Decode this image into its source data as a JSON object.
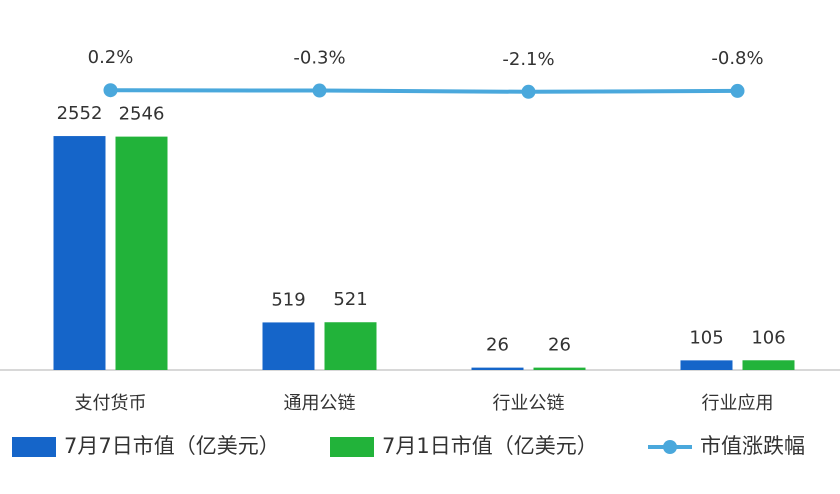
{
  "chart_data": {
    "type": "bar",
    "categories": [
      "支付货币",
      "通用公链",
      "行业公链",
      "行业应用"
    ],
    "series": [
      {
        "name": "7月7日市值（亿美元）",
        "color": "#1565c9",
        "values": [
          2552,
          519,
          26,
          105
        ]
      },
      {
        "name": "7月1日市值（亿美元）",
        "color": "#22b33a",
        "values": [
          2546,
          521,
          26,
          106
        ]
      },
      {
        "name": "市值涨跌幅",
        "type": "line",
        "axis": "y2",
        "color": "#4aa8dc",
        "values": [
          0.2,
          -0.3,
          -2.1,
          -0.8
        ],
        "value_labels": [
          "0.2%",
          "-0.3%",
          "-2.1%",
          "-0.8%"
        ]
      }
    ],
    "ylim": [
      0,
      3600
    ],
    "y2lim": [
      -400,
      72
    ],
    "grid": false,
    "legend": "bottom"
  }
}
